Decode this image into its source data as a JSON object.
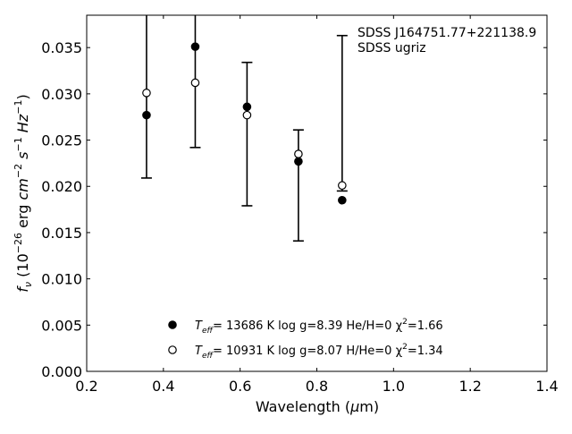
{
  "chart_data": {
    "type": "scatter",
    "annotation": [
      "SDSS J164751.77+221138.9",
      "SDSS ugriz"
    ],
    "xlabel": {
      "base": "Wavelength (",
      "sym": "μ",
      "rest": "m)"
    },
    "ylabel": {
      "f": "f",
      "nu": "ν",
      "pre": " (10",
      "exp1": "−26",
      "erg": " erg ",
      "cm": "cm",
      "exp2": "−2",
      "s": " s",
      "exp3": "−1",
      "hz": " Hz",
      "exp4": "−1",
      "close": ")"
    },
    "xlim": [
      0.2,
      1.4
    ],
    "ylim": [
      0.0,
      0.0385
    ],
    "xticks": [
      0.2,
      0.4,
      0.6,
      0.8,
      1.0,
      1.2,
      1.4
    ],
    "xtick_labels": [
      "0.2",
      "0.4",
      "0.6",
      "0.8",
      "1.0",
      "1.2",
      "1.4"
    ],
    "yticks": [
      0.0,
      0.005,
      0.01,
      0.015,
      0.02,
      0.025,
      0.03,
      0.035
    ],
    "ytick_labels": [
      "0.000",
      "0.005",
      "0.010",
      "0.015",
      "0.020",
      "0.025",
      "0.030",
      "0.035"
    ],
    "grid": false,
    "observed": [
      {
        "x": 0.356,
        "y": 0.0301,
        "ylo": 0.0209,
        "yhi": 0.0385
      },
      {
        "x": 0.483,
        "y": 0.0312,
        "ylo": 0.0242,
        "yhi": 0.0385
      },
      {
        "x": 0.618,
        "y": 0.0277,
        "ylo": 0.0179,
        "yhi": 0.0334
      },
      {
        "x": 0.752,
        "y": 0.0235,
        "ylo": 0.0141,
        "yhi": 0.0261
      },
      {
        "x": 0.866,
        "y": 0.0201,
        "ylo": 0.0195,
        "yhi": 0.0363
      }
    ],
    "series": [
      {
        "marker": "filled",
        "label": {
          "t": "T",
          "sub": "eff",
          "rest": "= 13686 K  log g=8.39  He/H=0  χ",
          "sup": "2",
          "end": "=1.66"
        },
        "x": [
          0.356,
          0.483,
          0.618,
          0.752,
          0.866
        ],
        "y": [
          0.0277,
          0.0351,
          0.0286,
          0.0227,
          0.0185
        ]
      },
      {
        "marker": "open",
        "label": {
          "t": "T",
          "sub": "eff",
          "rest": "= 10931 K  log g=8.07  H/He=0  χ",
          "sup": "2",
          "end": "=1.34"
        },
        "x": [
          0.356,
          0.483,
          0.618,
          0.752,
          0.866
        ],
        "y": [
          0.0301,
          0.0312,
          0.0277,
          0.0235,
          0.0201
        ]
      }
    ],
    "legend_position": "bottom-center"
  }
}
